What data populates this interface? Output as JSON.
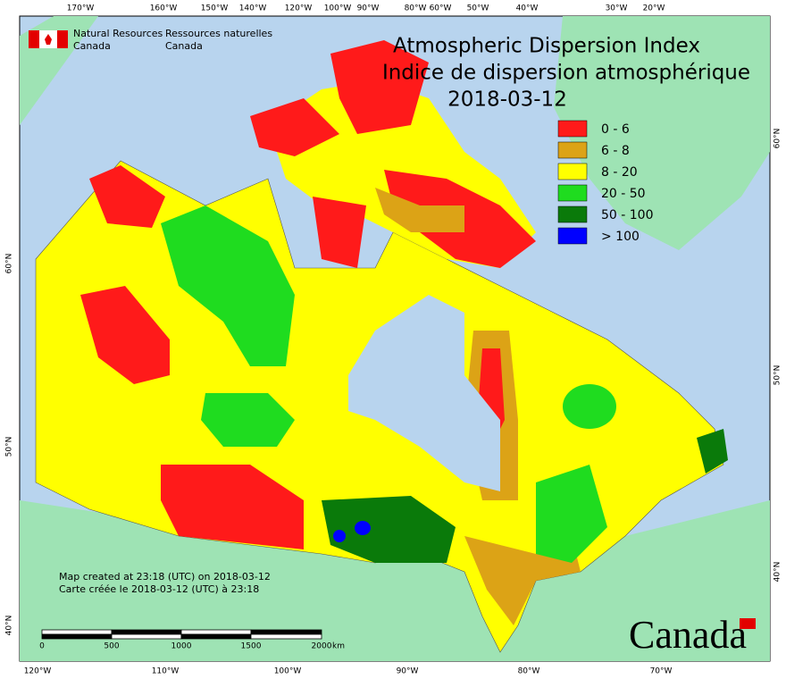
{
  "header": {
    "org_en": [
      "Natural Resources",
      "Canada"
    ],
    "org_fr": [
      "Ressources naturelles",
      "Canada"
    ]
  },
  "title": {
    "line1": "Atmospheric Dispersion Index",
    "line2": "Indice de dispersion atmosphérique",
    "date": "2018-03-12"
  },
  "legend": [
    {
      "label": "0 - 6",
      "color": "#ff1a1a"
    },
    {
      "label": "6 - 8",
      "color": "#dca316"
    },
    {
      "label": "8 - 20",
      "color": "#ffff00"
    },
    {
      "label": "20 - 50",
      "color": "#1fdc1f"
    },
    {
      "label": "50 - 100",
      "color": "#0a7a0a"
    },
    {
      "label": "> 100",
      "color": "#0000ff"
    }
  ],
  "graticule": {
    "top": [
      "170°W",
      "160°W",
      "150°W",
      "140°W",
      "120°W",
      "100°W",
      "90°W",
      "80°W",
      "60°W",
      "50°W",
      "40°W",
      "30°W",
      "20°W"
    ],
    "bottom": [
      "120°W",
      "110°W",
      "100°W",
      "90°W",
      "80°W",
      "70°W"
    ],
    "left": [
      "60°N",
      "50°N",
      "40°N"
    ],
    "right": [
      "60°N",
      "50°N",
      "40°N"
    ]
  },
  "footer": {
    "created_en": "Map created at 23:18 (UTC) on 2018-03-12",
    "created_fr": "Carte créée le 2018-03-12 (UTC) à 23:18"
  },
  "scale": {
    "labels": [
      "0",
      "500",
      "1000",
      "1500",
      "2000"
    ],
    "unit": "km"
  },
  "wordmark": "Canada"
}
